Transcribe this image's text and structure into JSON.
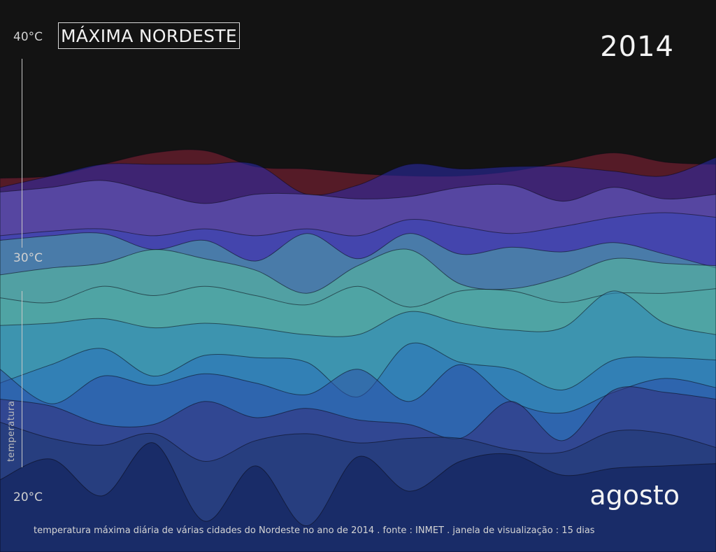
{
  "header": {
    "title": "MÁXIMA NORDESTE",
    "year": "2014",
    "month": "agosto"
  },
  "footer": {
    "caption": "temperatura máxima diária de várias cidades do Nordeste no ano de 2014  .  fonte : INMET  .  janela de visualização : 15 dias"
  },
  "axis": {
    "tick_top": "40°C",
    "tick_mid": "30°C",
    "tick_bottom": "20°C",
    "ylabel": "temperatura"
  },
  "chart_data": {
    "type": "area",
    "xlabel": "",
    "ylabel": "temperatura",
    "ylim": [
      20,
      40
    ],
    "y_ticks": [
      "20°C",
      "30°C",
      "40°C"
    ],
    "x_points": 15,
    "grid": false,
    "series": [
      {
        "color": "#8c2238",
        "values": [
          33.9,
          34.0,
          34.5,
          35.0,
          35.1,
          34.4,
          34.3,
          34.1,
          34.0,
          34.0,
          34.2,
          34.6,
          35.0,
          34.6,
          34.5
        ]
      },
      {
        "color": "#2c2bb0",
        "values": [
          33.5,
          34.0,
          34.5,
          34.5,
          34.5,
          34.5,
          33.2,
          33.6,
          34.5,
          34.3,
          34.4,
          34.4,
          34.2,
          34.0,
          34.8
        ]
      },
      {
        "color": "#6a63c8",
        "values": [
          33.3,
          33.5,
          33.8,
          33.3,
          32.8,
          33.2,
          33.2,
          33.0,
          33.1,
          33.5,
          33.6,
          32.9,
          33.5,
          33.0,
          33.2
        ]
      },
      {
        "color": "#3646b8",
        "values": [
          31.4,
          31.6,
          31.7,
          31.4,
          31.7,
          31.4,
          31.7,
          31.4,
          32.1,
          31.8,
          31.5,
          31.8,
          32.2,
          32.4,
          32.2
        ]
      },
      {
        "color": "#4fa8a6",
        "values": [
          31.2,
          31.4,
          31.5,
          30.8,
          31.2,
          30.3,
          31.5,
          30.4,
          31.5,
          30.6,
          30.9,
          30.7,
          31.1,
          30.6,
          30.0
        ]
      },
      {
        "color": "#57bf9f",
        "values": [
          29.7,
          30.0,
          30.2,
          30.8,
          30.4,
          29.9,
          28.9,
          30.1,
          30.8,
          29.3,
          29.1,
          29.6,
          30.4,
          30.2,
          30.1
        ]
      },
      {
        "color": "#4fa8a6",
        "values": [
          28.7,
          28.5,
          29.2,
          28.8,
          29.2,
          28.8,
          28.4,
          29.2,
          28.3,
          29.0,
          29.0,
          28.5,
          28.9,
          28.9,
          29.1
        ]
      },
      {
        "color": "#2f86b8",
        "values": [
          27.5,
          27.6,
          27.8,
          27.4,
          27.6,
          27.4,
          27.1,
          27.1,
          28.1,
          27.6,
          27.3,
          27.4,
          29.0,
          27.6,
          27.1
        ]
      },
      {
        "color": "#2a6fba",
        "values": [
          25.0,
          25.8,
          26.5,
          25.3,
          26.2,
          26.1,
          25.9,
          24.4,
          26.7,
          25.9,
          25.6,
          24.7,
          26.0,
          26.1,
          26.0
        ]
      },
      {
        "color": "#2b4fa8",
        "values": [
          25.6,
          24.1,
          25.3,
          24.9,
          25.4,
          25.0,
          24.5,
          25.6,
          24.2,
          25.8,
          24.2,
          23.7,
          24.6,
          25.2,
          24.8
        ]
      },
      {
        "color": "#352f7c",
        "values": [
          24.3,
          24.0,
          23.2,
          23.2,
          24.2,
          23.5,
          23.9,
          23.4,
          23.2,
          22.6,
          24.2,
          22.5,
          24.7,
          24.6,
          24.3
        ]
      },
      {
        "color": "#1f3670",
        "values": [
          23.3,
          22.6,
          22.3,
          22.8,
          21.6,
          22.5,
          22.8,
          22.4,
          22.6,
          22.6,
          22.1,
          22.0,
          22.9,
          22.8,
          22.2
        ]
      },
      {
        "color": "#0f1e55",
        "values": [
          20.8,
          21.7,
          20.1,
          22.4,
          19.0,
          21.4,
          18.8,
          21.8,
          20.3,
          21.6,
          21.9,
          21.0,
          21.3,
          21.4,
          21.5
        ]
      }
    ]
  }
}
